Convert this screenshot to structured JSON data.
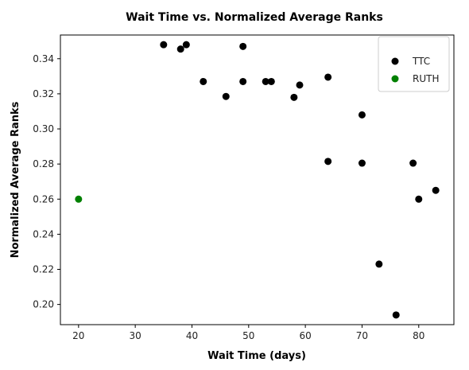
{
  "chart_data": {
    "type": "scatter",
    "title": "Wait Time vs. Normalized Average Ranks",
    "xlabel": "Wait Time (days)",
    "ylabel": "Normalized Average Ranks",
    "xlim": [
      16.8,
      86.2
    ],
    "ylim": [
      0.1885,
      0.3535
    ],
    "xticks": [
      "20",
      "30",
      "40",
      "50",
      "60",
      "70",
      "80"
    ],
    "yticks": [
      "0.20",
      "0.22",
      "0.24",
      "0.26",
      "0.28",
      "0.30",
      "0.32",
      "0.34"
    ],
    "grid": false,
    "legend_position": "top-right",
    "series": [
      {
        "name": "TTC",
        "color": "#000000",
        "points": [
          [
            35,
            0.348
          ],
          [
            38,
            0.3455
          ],
          [
            39,
            0.348
          ],
          [
            42,
            0.327
          ],
          [
            46,
            0.3185
          ],
          [
            49,
            0.347
          ],
          [
            49,
            0.327
          ],
          [
            53,
            0.327
          ],
          [
            54,
            0.327
          ],
          [
            58,
            0.318
          ],
          [
            59,
            0.325
          ],
          [
            64,
            0.3295
          ],
          [
            64,
            0.2815
          ],
          [
            70,
            0.308
          ],
          [
            70,
            0.2805
          ],
          [
            73,
            0.223
          ],
          [
            76,
            0.194
          ],
          [
            79,
            0.2805
          ],
          [
            80,
            0.26
          ],
          [
            83,
            0.265
          ]
        ]
      },
      {
        "name": "RUTH",
        "color": "#008000",
        "points": [
          [
            20,
            0.26
          ]
        ]
      }
    ]
  }
}
